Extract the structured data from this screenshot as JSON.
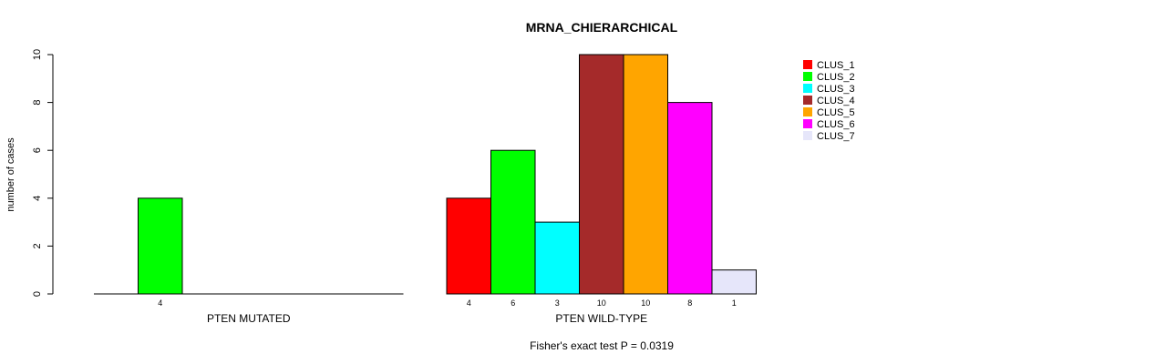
{
  "chart_data": {
    "type": "bar",
    "title": "MRNA_CHIERARCHICAL",
    "ylabel": "number of cases",
    "ylim": [
      0,
      10
    ],
    "yticks": [
      0,
      2,
      4,
      6,
      8,
      10
    ],
    "groups": [
      {
        "label": "PTEN MUTATED",
        "values": [
          0,
          4,
          0,
          0,
          0,
          0,
          0
        ],
        "value_labels": [
          "",
          "4",
          "",
          "",
          "",
          "",
          ""
        ]
      },
      {
        "label": "PTEN WILD-TYPE",
        "values": [
          4,
          6,
          3,
          10,
          10,
          8,
          1
        ],
        "value_labels": [
          "4",
          "6",
          "3",
          "10",
          "10",
          "8",
          "1"
        ]
      }
    ],
    "series": [
      {
        "name": "CLUS_1",
        "color": "#ff0000"
      },
      {
        "name": "CLUS_2",
        "color": "#00ff00"
      },
      {
        "name": "CLUS_3",
        "color": "#00ffff"
      },
      {
        "name": "CLUS_4",
        "color": "#a52a2a"
      },
      {
        "name": "CLUS_5",
        "color": "#ffa500"
      },
      {
        "name": "CLUS_6",
        "color": "#ff00ff"
      },
      {
        "name": "CLUS_7",
        "color": "#e6e6fa"
      }
    ],
    "legend_position": "top-right",
    "footnote": "Fisher's exact test P = 0.0319",
    "grid": false
  }
}
